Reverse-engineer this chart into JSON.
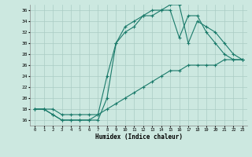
{
  "xlabel": "Humidex (Indice chaleur)",
  "bg_color": "#cce8e0",
  "grid_color": "#aaccc4",
  "line_color": "#1a7a6a",
  "line1_x": [
    0,
    1,
    2,
    3,
    4,
    5,
    6,
    7,
    8,
    9,
    10,
    11,
    12,
    13,
    14,
    15,
    16,
    17,
    18,
    19,
    20,
    21,
    22,
    23
  ],
  "line1_y": [
    18,
    18,
    17,
    16,
    16,
    16,
    16,
    16,
    20,
    30,
    32,
    33,
    35,
    35,
    36,
    36,
    31,
    35,
    35,
    32,
    30,
    28,
    27,
    27
  ],
  "line2_x": [
    0,
    1,
    2,
    3,
    4,
    5,
    6,
    7,
    8,
    9,
    10,
    11,
    12,
    13,
    14,
    15,
    16,
    17,
    18,
    19,
    20,
    21,
    22,
    23
  ],
  "line2_y": [
    18,
    18,
    17,
    16,
    16,
    16,
    16,
    17,
    24,
    30,
    33,
    34,
    35,
    36,
    36,
    37,
    37,
    30,
    34,
    33,
    32,
    30,
    28,
    27
  ],
  "line3_x": [
    0,
    1,
    2,
    3,
    4,
    5,
    6,
    7,
    8,
    9,
    10,
    11,
    12,
    13,
    14,
    15,
    16,
    17,
    18,
    19,
    20,
    21,
    22,
    23
  ],
  "line3_y": [
    18,
    18,
    18,
    17,
    17,
    17,
    17,
    17,
    18,
    19,
    20,
    21,
    22,
    23,
    24,
    25,
    25,
    26,
    26,
    26,
    26,
    27,
    27,
    27
  ],
  "ylim": [
    15,
    37
  ],
  "xlim": [
    -0.5,
    23.5
  ],
  "yticks": [
    16,
    18,
    20,
    22,
    24,
    26,
    28,
    30,
    32,
    34,
    36
  ],
  "xticks": [
    0,
    1,
    2,
    3,
    4,
    5,
    6,
    7,
    8,
    9,
    10,
    11,
    12,
    13,
    14,
    15,
    16,
    17,
    18,
    19,
    20,
    21,
    22,
    23
  ]
}
